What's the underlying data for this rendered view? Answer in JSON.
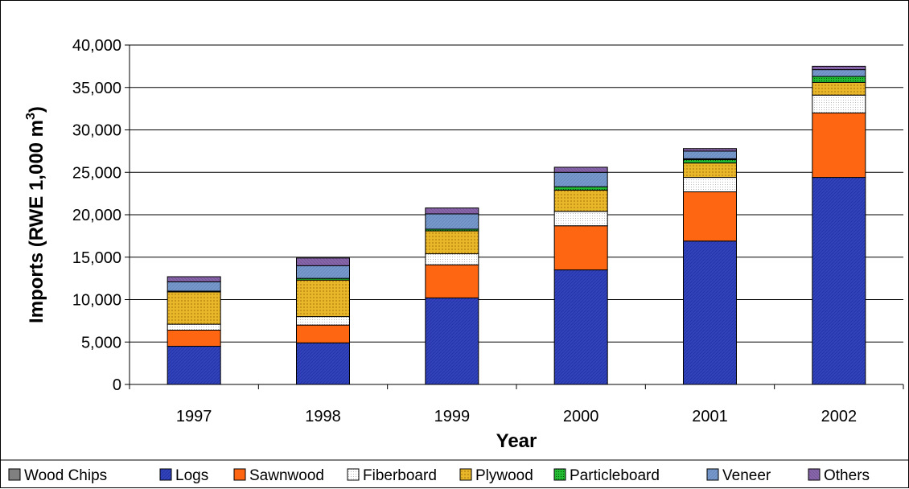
{
  "chart_data": {
    "type": "bar",
    "stacked": true,
    "title": "",
    "xlabel": "Year",
    "ylabel_main": "Imports (RWE 1,000 m",
    "ylabel_sup": "3",
    "ylabel_close": ")",
    "categories": [
      "1997",
      "1998",
      "1999",
      "2000",
      "2001",
      "2002"
    ],
    "ylim": [
      0,
      40000
    ],
    "yticks": [
      0,
      5000,
      10000,
      15000,
      20000,
      25000,
      30000,
      35000,
      40000
    ],
    "ytick_labels": [
      "0",
      "5,000",
      "10,000",
      "15,000",
      "20,000",
      "25,000",
      "30,000",
      "35,000",
      "40,000"
    ],
    "grid": "horizontal",
    "legend_position": "bottom",
    "legend_order": [
      "Wood Chips",
      "Logs",
      "Sawnwood",
      "Fiberboard",
      "Plywood",
      "Particleboard",
      "Veneer",
      "Others"
    ],
    "series": [
      {
        "name": "Logs",
        "color": "#3344BB",
        "values": [
          4500,
          4900,
          10200,
          13500,
          16900,
          24400
        ]
      },
      {
        "name": "Sawnwood",
        "color": "#FF6611",
        "values": [
          1900,
          2100,
          3900,
          5200,
          5800,
          7600
        ]
      },
      {
        "name": "Fiberboard",
        "color": "#F2F2F2",
        "values": [
          700,
          1000,
          1300,
          1700,
          1700,
          2100
        ]
      },
      {
        "name": "Plywood",
        "color": "#E8B82A",
        "values": [
          3800,
          4300,
          2700,
          2500,
          1700,
          1500
        ]
      },
      {
        "name": "Particleboard",
        "color": "#22BB33",
        "values": [
          100,
          200,
          200,
          400,
          400,
          700
        ]
      },
      {
        "name": "Wood Chips",
        "color": "#808080",
        "values": [
          0,
          0,
          0,
          0,
          100,
          0
        ]
      },
      {
        "name": "Veneer",
        "color": "#7799CC",
        "values": [
          1100,
          1500,
          1800,
          1700,
          900,
          800
        ]
      },
      {
        "name": "Others",
        "color": "#8866AA",
        "values": [
          600,
          900,
          700,
          600,
          300,
          400
        ]
      }
    ]
  }
}
